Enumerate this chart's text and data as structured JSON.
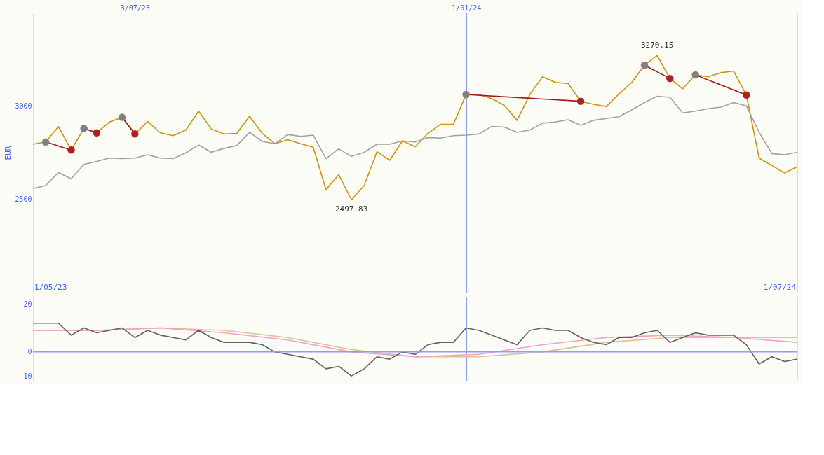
{
  "chart_data": [
    {
      "type": "line",
      "ylabel": "EUR",
      "x": [
        "2023-05-08",
        "2023-05-15",
        "2023-05-22",
        "2023-05-29",
        "2023-06-05",
        "2023-06-12",
        "2023-06-19",
        "2023-06-26",
        "2023-07-03",
        "2023-07-10",
        "2023-07-17",
        "2023-07-24",
        "2023-07-31",
        "2023-08-07",
        "2023-08-14",
        "2023-08-21",
        "2023-08-28",
        "2023-09-04",
        "2023-09-11",
        "2023-09-18",
        "2023-09-25",
        "2023-10-02",
        "2023-10-09",
        "2023-10-16",
        "2023-10-23",
        "2023-10-30",
        "2023-11-06",
        "2023-11-13",
        "2023-11-20",
        "2023-11-27",
        "2023-12-04",
        "2023-12-11",
        "2023-12-18",
        "2023-12-25",
        "2024-01-01",
        "2024-01-08",
        "2024-01-15",
        "2024-01-22",
        "2024-01-29",
        "2024-02-05",
        "2024-02-12",
        "2024-02-19",
        "2024-02-26",
        "2024-03-04",
        "2024-03-11",
        "2024-03-18",
        "2024-03-25",
        "2024-04-01",
        "2024-04-08",
        "2024-04-15",
        "2024-04-22",
        "2024-04-29",
        "2024-05-06",
        "2024-05-13",
        "2024-05-20",
        "2024-05-27",
        "2024-06-03",
        "2024-06-10",
        "2024-06-17",
        "2024-06-24",
        "2024-07-01"
      ],
      "series": [
        {
          "color": "#d4900a",
          "values": [
            2795,
            2807,
            2890,
            2764,
            2880,
            2856,
            2914,
            2939,
            2850,
            2917,
            2856,
            2841,
            2871,
            2972,
            2877,
            2850,
            2853,
            2945,
            2853,
            2798,
            2819,
            2798,
            2779,
            2552,
            2632,
            2497.83,
            2574,
            2755,
            2709,
            2813,
            2782,
            2853,
            2902,
            2902,
            3061,
            3061,
            3040,
            3003,
            2923,
            3061,
            3156,
            3126,
            3120,
            3025,
            3009,
            2997,
            3064,
            3126,
            3218,
            3270.15,
            3147,
            3092,
            3166,
            3156,
            3178,
            3187,
            3058,
            2721,
            2681,
            2641,
            2675
          ]
        },
        {
          "color": "#a0a0a0",
          "values": [
            2558,
            2574,
            2644,
            2610,
            2687,
            2703,
            2721,
            2718,
            2721,
            2739,
            2721,
            2718,
            2749,
            2791,
            2752,
            2773,
            2788,
            2859,
            2810,
            2798,
            2847,
            2837,
            2844,
            2718,
            2770,
            2730,
            2752,
            2795,
            2795,
            2813,
            2807,
            2831,
            2828,
            2841,
            2844,
            2850,
            2890,
            2887,
            2859,
            2871,
            2908,
            2914,
            2926,
            2896,
            2923,
            2933,
            2942,
            2979,
            3018,
            3052,
            3046,
            2963,
            2972,
            2985,
            2994,
            3018,
            3000,
            2859,
            2745,
            2739,
            2752
          ]
        },
        {
          "color": "#a01818",
          "marker": "circle",
          "colors": [
            "#808080",
            "#b02020"
          ],
          "x": [
            "2023-05-15",
            "2023-05-29"
          ],
          "values": [
            2807,
            2764
          ]
        },
        {
          "color": "#a01818",
          "marker": "circle",
          "colors": [
            "#808080",
            "#b02020"
          ],
          "x": [
            "2023-06-05",
            "2023-06-12"
          ],
          "values": [
            2880,
            2856
          ]
        },
        {
          "color": "#a01818",
          "marker": "circle",
          "colors": [
            "#808080",
            "#b02020"
          ],
          "x": [
            "2023-06-26",
            "2023-07-03"
          ],
          "values": [
            2939,
            2850
          ]
        },
        {
          "color": "#a01818",
          "marker": "circle",
          "colors": [
            "#808080",
            "#b02020"
          ],
          "x": [
            "2024-01-01",
            "2024-03-04"
          ],
          "values": [
            3061,
            3025
          ]
        },
        {
          "color": "#a01818",
          "marker": "circle",
          "colors": [
            "#808080",
            "#b02020"
          ],
          "x": [
            "2024-04-08",
            "2024-04-22"
          ],
          "values": [
            3218,
            3147
          ]
        },
        {
          "color": "#a01818",
          "marker": "circle",
          "colors": [
            "#808080",
            "#b02020"
          ],
          "x": [
            "2024-05-06",
            "2024-06-03"
          ],
          "values": [
            3166,
            3058
          ]
        }
      ],
      "xlim": [
        "2023-05-08",
        "2024-07-01"
      ],
      "xticks": [
        {
          "value": "2023-07-03",
          "label": "3/07/23"
        },
        {
          "value": "2024-01-01",
          "label": "1/01/24"
        }
      ],
      "ylim": [
        2000,
        3500
      ],
      "yticks": [
        2500,
        3000
      ],
      "grid": true,
      "annotations": [
        {
          "text": "3270.15",
          "x": "2024-04-15",
          "y": 3270.15
        },
        {
          "text": "2497.83",
          "x": "2023-10-30",
          "y": 2497.83
        },
        "1/05/23",
        "1/07/24"
      ]
    },
    {
      "type": "line",
      "x": [
        "2023-05-08",
        "2023-05-15",
        "2023-05-22",
        "2023-05-29",
        "2023-06-05",
        "2023-06-12",
        "2023-06-19",
        "2023-06-26",
        "2023-07-03",
        "2023-07-10",
        "2023-07-17",
        "2023-07-24",
        "2023-07-31",
        "2023-08-07",
        "2023-08-14",
        "2023-08-21",
        "2023-08-28",
        "2023-09-04",
        "2023-09-11",
        "2023-09-18",
        "2023-09-25",
        "2023-10-02",
        "2023-10-09",
        "2023-10-16",
        "2023-10-23",
        "2023-10-30",
        "2023-11-06",
        "2023-11-13",
        "2023-11-20",
        "2023-11-27",
        "2023-12-04",
        "2023-12-11",
        "2023-12-18",
        "2023-12-25",
        "2024-01-01",
        "2024-01-08",
        "2024-01-15",
        "2024-01-22",
        "2024-01-29",
        "2024-02-05",
        "2024-02-12",
        "2024-02-19",
        "2024-02-26",
        "2024-03-04",
        "2024-03-11",
        "2024-03-18",
        "2024-03-25",
        "2024-04-01",
        "2024-04-08",
        "2024-04-15",
        "2024-04-22",
        "2024-04-29",
        "2024-05-06",
        "2024-05-13",
        "2024-05-20",
        "2024-05-27",
        "2024-06-03",
        "2024-06-10",
        "2024-06-17",
        "2024-06-24",
        "2024-07-01"
      ],
      "series": [
        {
          "color": "#e0c090",
          "x": [
            "2023-05-08",
            "2023-06-12",
            "2023-07-17",
            "2023-08-21",
            "2023-09-25",
            "2023-10-30",
            "2023-12-04",
            "2024-01-08",
            "2024-02-12",
            "2024-03-18",
            "2024-04-22",
            "2024-05-27",
            "2024-07-01"
          ],
          "values": [
            9,
            9,
            10,
            9,
            6,
            1,
            -2,
            -2,
            0,
            4,
            6,
            6,
            6
          ]
        },
        {
          "color": "#f4a0c0",
          "x": [
            "2023-05-08",
            "2023-06-12",
            "2023-07-17",
            "2023-08-21",
            "2023-09-25",
            "2023-10-30",
            "2023-12-04",
            "2024-01-08",
            "2024-02-12",
            "2024-03-18",
            "2024-04-22",
            "2024-05-27",
            "2024-07-01"
          ],
          "values": [
            9,
            9,
            10,
            8,
            5,
            0,
            -2,
            -1,
            3,
            6,
            7,
            6,
            4
          ]
        },
        {
          "color": "#606060",
          "values": [
            12,
            12,
            12,
            7,
            10,
            8,
            9,
            10,
            6,
            9,
            7,
            6,
            5,
            9,
            6,
            4,
            4,
            4,
            3,
            0,
            -1,
            -2,
            -3,
            -7,
            -6,
            -10,
            -7,
            -2,
            -3,
            0,
            -1,
            3,
            4,
            4,
            10,
            9,
            7,
            5,
            3,
            9,
            10,
            9,
            9,
            6,
            4,
            3,
            6,
            6,
            8,
            9,
            4,
            6,
            8,
            7,
            7,
            7,
            3,
            -5,
            -2,
            -4,
            -3
          ]
        }
      ],
      "xlim": [
        "2023-05-08",
        "2024-07-01"
      ],
      "xticks": [
        {
          "value": "2023-07-03",
          "label": null
        },
        {
          "value": "2024-01-01",
          "label": null
        }
      ],
      "ylim": [
        -12,
        23
      ],
      "yticks": [
        20,
        0,
        -10
      ],
      "grid": "x",
      "tick_labels": "y",
      "ref_lines": [
        {
          "axis": "y",
          "value": 0,
          "color": "#8c9cff"
        }
      ]
    }
  ]
}
